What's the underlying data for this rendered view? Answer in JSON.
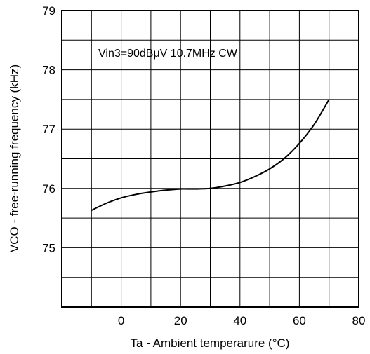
{
  "chart_data": {
    "type": "line",
    "title": "",
    "xlabel": "Ta - Ambient temperarure (°C)",
    "ylabel": "VCO - free-running frequency (kHz)",
    "xlim": [
      -20,
      80
    ],
    "ylim": [
      74,
      79
    ],
    "x_ticks": [
      0,
      20,
      40,
      60,
      80
    ],
    "x_tick_labels": [
      "0",
      "20",
      "40",
      "60",
      "80"
    ],
    "y_ticks": [
      75,
      76,
      77,
      78,
      79
    ],
    "y_tick_labels": [
      "75",
      "76",
      "77",
      "78",
      "79"
    ],
    "x_grid_step": 10,
    "y_grid_step": 0.5,
    "grid": true,
    "annotation": "Vin3=90dBμV 10.7MHz CW",
    "series": [
      {
        "x": [
          -10,
          -5,
          0,
          5,
          10,
          15,
          20,
          25,
          30,
          35,
          40,
          45,
          50,
          55,
          60,
          65,
          70
        ],
        "y": [
          75.63,
          75.75,
          75.84,
          75.9,
          75.94,
          75.97,
          75.99,
          75.99,
          76.0,
          76.04,
          76.1,
          76.2,
          76.33,
          76.51,
          76.76,
          77.08,
          77.5
        ],
        "color": "#000000"
      }
    ]
  }
}
